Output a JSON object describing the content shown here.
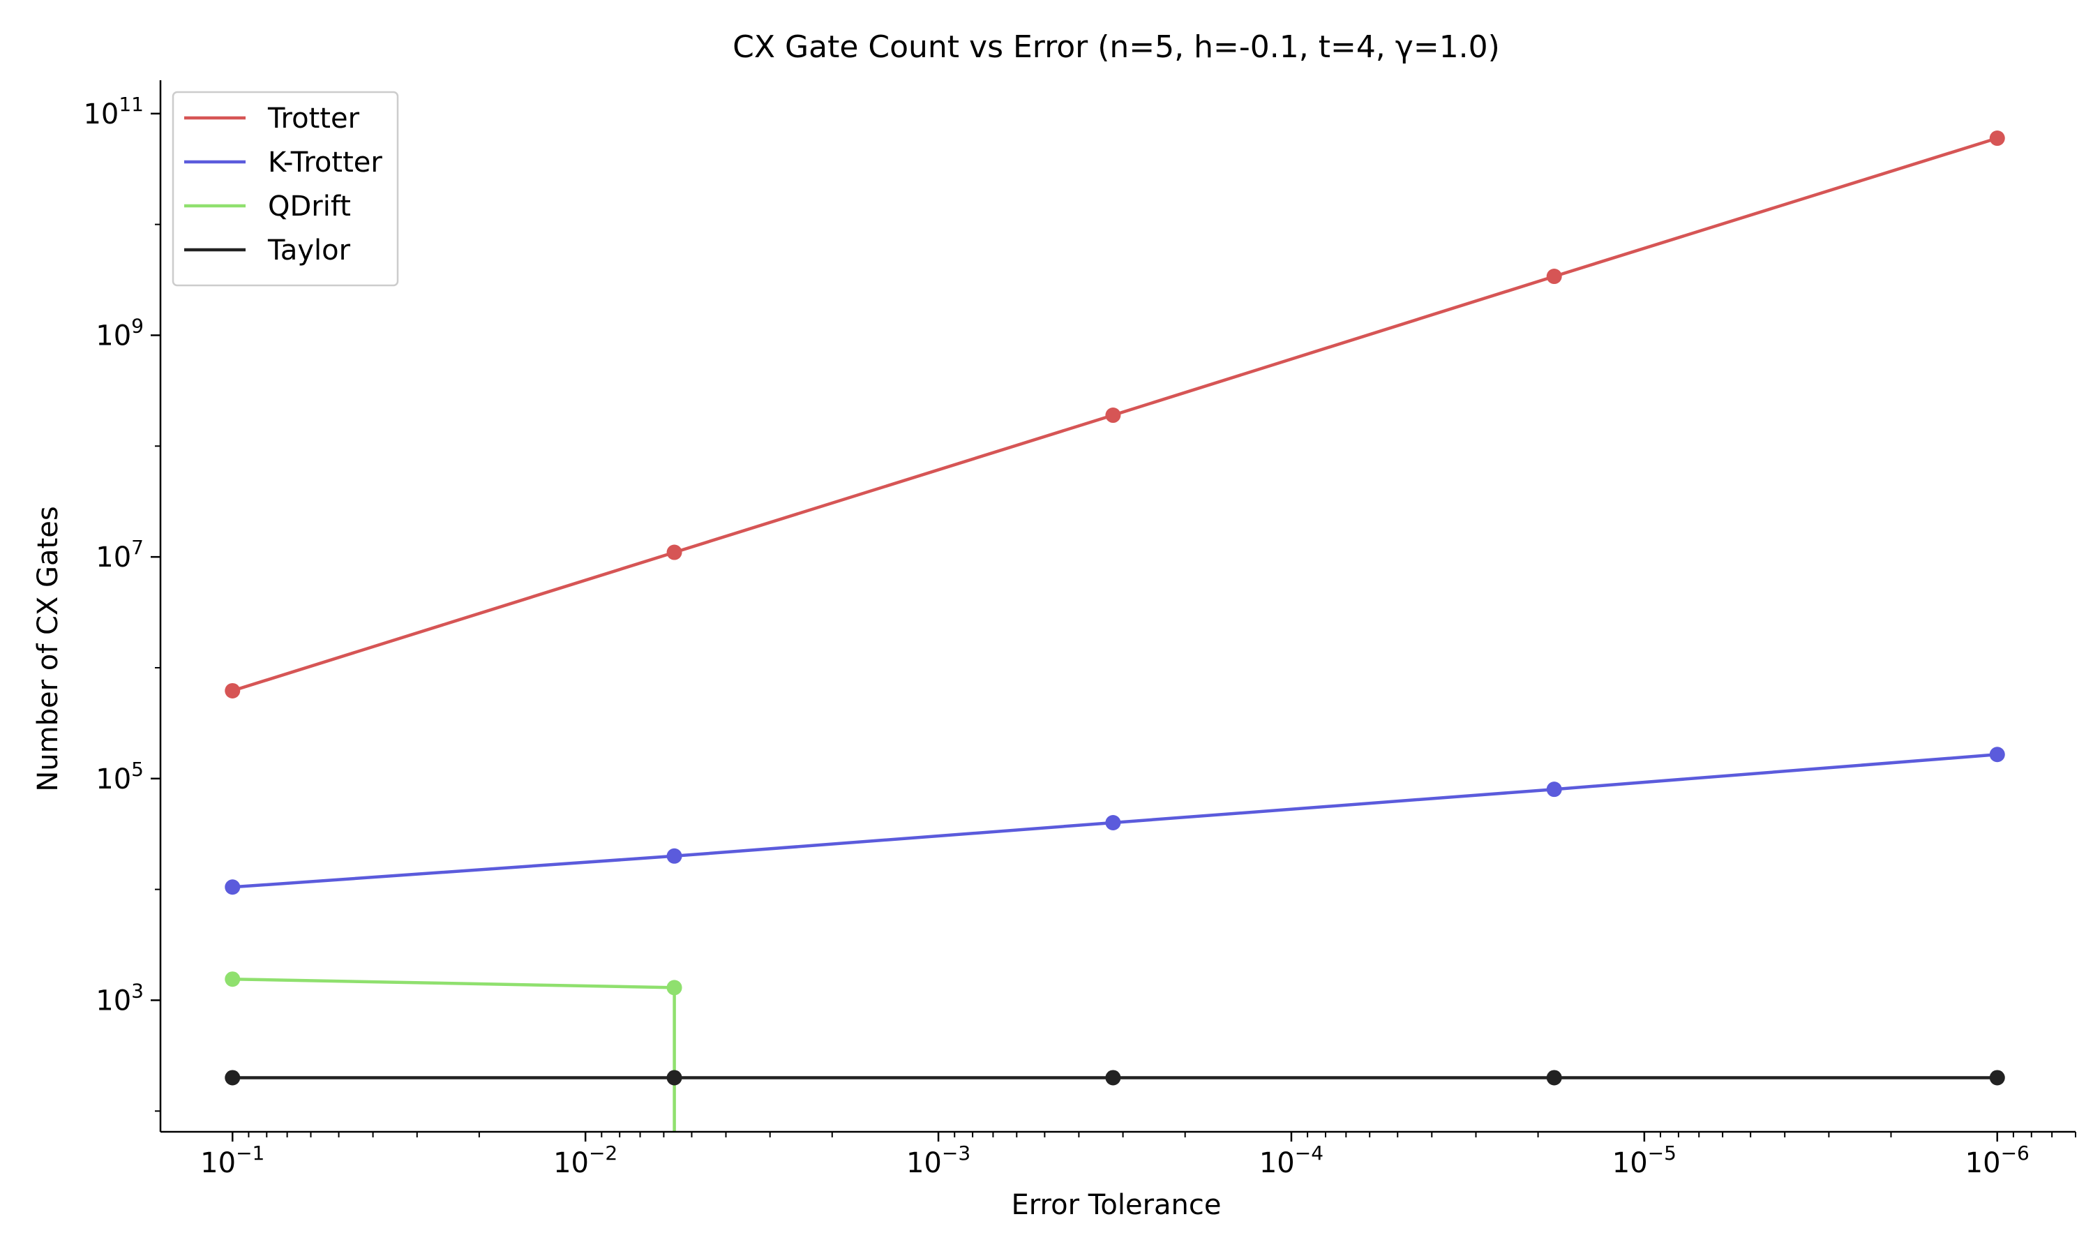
{
  "chart_data": {
    "type": "line",
    "title": "CX Gate Count vs Error (n=5, h=-0.1, t=4, γ=1.0)",
    "xlabel": "Error Tolerance",
    "ylabel": "Number of CX Gates",
    "x_scale": "log",
    "y_scale": "log",
    "x_inverted": true,
    "x_range": [
      0.16,
      6e-07
    ],
    "y_range": [
      65,
      200000000000.0
    ],
    "x_ticks": [
      {
        "value": 0.1,
        "base": "10",
        "exp": "−1"
      },
      {
        "value": 0.01,
        "base": "10",
        "exp": "−2"
      },
      {
        "value": 0.001,
        "base": "10",
        "exp": "−3"
      },
      {
        "value": 0.0001,
        "base": "10",
        "exp": "−4"
      },
      {
        "value": 1e-05,
        "base": "10",
        "exp": "−5"
      },
      {
        "value": 1e-06,
        "base": "10",
        "exp": "−6"
      }
    ],
    "y_ticks": [
      {
        "value": 1000,
        "base": "10",
        "exp": "3"
      },
      {
        "value": 100000,
        "base": "10",
        "exp": "5"
      },
      {
        "value": 10000000,
        "base": "10",
        "exp": "7"
      },
      {
        "value": 1000000000,
        "base": "10",
        "exp": "9"
      },
      {
        "value": 100000000000,
        "base": "10",
        "exp": "11"
      }
    ],
    "grid": false,
    "legend_position": "top-left",
    "series": [
      {
        "name": "Trotter",
        "color": "#d65555",
        "x": [
          0.1,
          0.0056,
          0.00032,
          1.8e-05,
          1e-06
        ],
        "y": [
          620000,
          11000000,
          190000000,
          3400000000,
          60000000000
        ]
      },
      {
        "name": "K-Trotter",
        "color": "#5b5bdc",
        "x": [
          0.1,
          0.0056,
          0.00032,
          1.8e-05,
          1e-06
        ],
        "y": [
          10500,
          20000,
          40000,
          80000,
          165000
        ]
      },
      {
        "name": "QDrift",
        "color": "#8fe06e",
        "x": [
          0.1,
          0.0056
        ],
        "y": [
          1550,
          1300
        ],
        "drop_to_axis_at": 0.0056
      },
      {
        "name": "Taylor",
        "color": "#222222",
        "x": [
          0.1,
          0.0056,
          0.00032,
          1.8e-05,
          1e-06
        ],
        "y": [
          200,
          200,
          200,
          200,
          200
        ]
      }
    ]
  }
}
